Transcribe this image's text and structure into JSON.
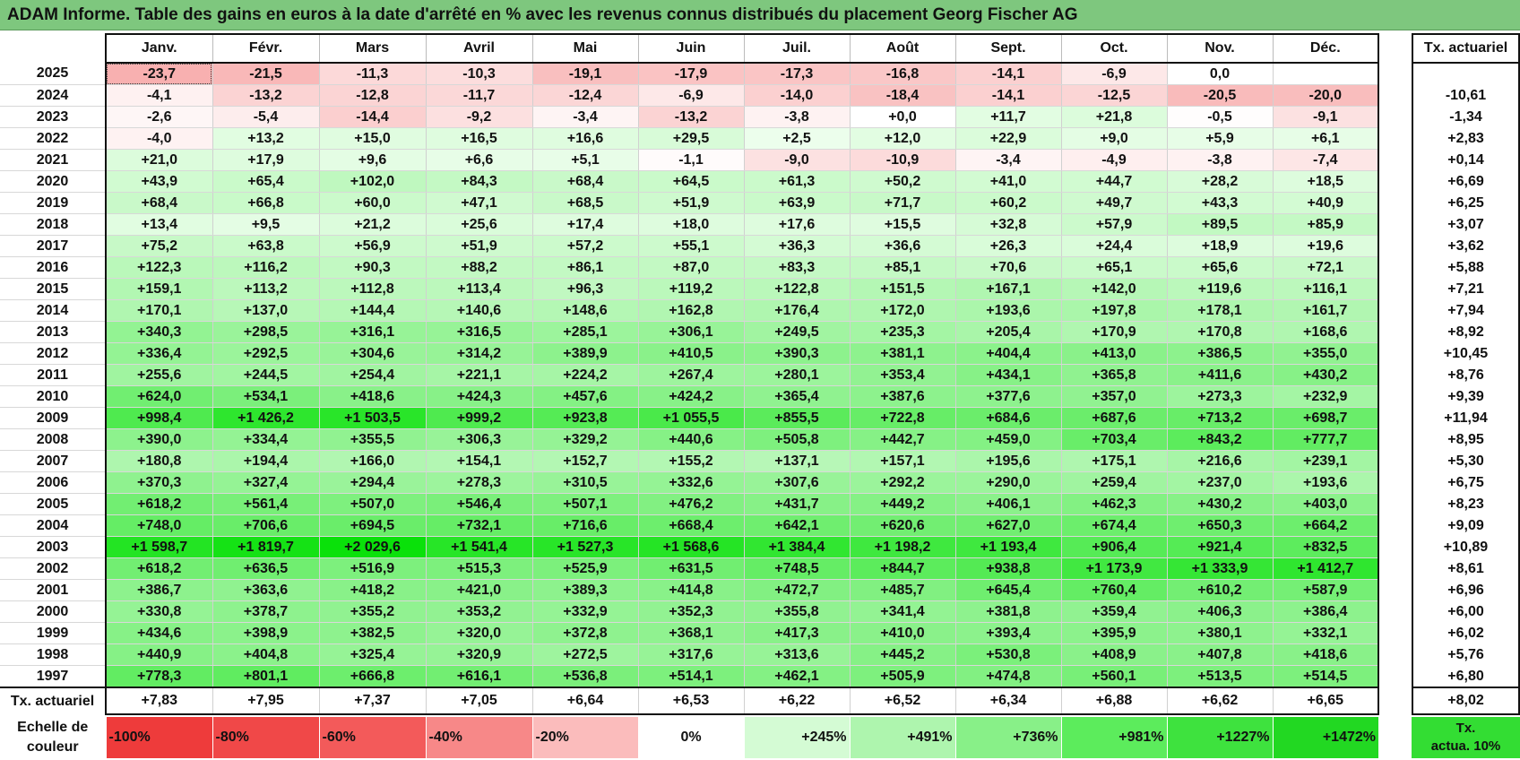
{
  "title": "ADAM Informe. Table des gains en euros à la date d'arrêté en % avec les revenus connus distribués du placement Georg Fischer AG",
  "months": [
    "Janv.",
    "Févr.",
    "Mars",
    "Avril",
    "Mai",
    "Juin",
    "Juil.",
    "Août",
    "Sept.",
    "Oct.",
    "Nov.",
    "Déc."
  ],
  "side_header": "Tx. actuariel",
  "rows": [
    {
      "year": "2025",
      "cells": [
        "-23,7",
        "-21,5",
        "-11,3",
        "-10,3",
        "-19,1",
        "-17,9",
        "-17,3",
        "-16,8",
        "-14,1",
        "-6,9",
        "0,0",
        ""
      ],
      "rate": ""
    },
    {
      "year": "2024",
      "cells": [
        "-4,1",
        "-13,2",
        "-12,8",
        "-11,7",
        "-12,4",
        "-6,9",
        "-14,0",
        "-18,4",
        "-14,1",
        "-12,5",
        "-20,5",
        "-20,0"
      ],
      "rate": "-10,61"
    },
    {
      "year": "2023",
      "cells": [
        "-2,6",
        "-5,4",
        "-14,4",
        "-9,2",
        "-3,4",
        "-13,2",
        "-3,8",
        "+0,0",
        "+11,7",
        "+21,8",
        "-0,5",
        "-9,1"
      ],
      "rate": "-1,34"
    },
    {
      "year": "2022",
      "cells": [
        "-4,0",
        "+13,2",
        "+15,0",
        "+16,5",
        "+16,6",
        "+29,5",
        "+2,5",
        "+12,0",
        "+22,9",
        "+9,0",
        "+5,9",
        "+6,1"
      ],
      "rate": "+2,83"
    },
    {
      "year": "2021",
      "cells": [
        "+21,0",
        "+17,9",
        "+9,6",
        "+6,6",
        "+5,1",
        "-1,1",
        "-9,0",
        "-10,9",
        "-3,4",
        "-4,9",
        "-3,8",
        "-7,4"
      ],
      "rate": "+0,14"
    },
    {
      "year": "2020",
      "cells": [
        "+43,9",
        "+65,4",
        "+102,0",
        "+84,3",
        "+68,4",
        "+64,5",
        "+61,3",
        "+50,2",
        "+41,0",
        "+44,7",
        "+28,2",
        "+18,5"
      ],
      "rate": "+6,69"
    },
    {
      "year": "2019",
      "cells": [
        "+68,4",
        "+66,8",
        "+60,0",
        "+47,1",
        "+68,5",
        "+51,9",
        "+63,9",
        "+71,7",
        "+60,2",
        "+49,7",
        "+43,3",
        "+40,9"
      ],
      "rate": "+6,25"
    },
    {
      "year": "2018",
      "cells": [
        "+13,4",
        "+9,5",
        "+21,2",
        "+25,6",
        "+17,4",
        "+18,0",
        "+17,6",
        "+15,5",
        "+32,8",
        "+57,9",
        "+89,5",
        "+85,9"
      ],
      "rate": "+3,07"
    },
    {
      "year": "2017",
      "cells": [
        "+75,2",
        "+63,8",
        "+56,9",
        "+51,9",
        "+57,2",
        "+55,1",
        "+36,3",
        "+36,6",
        "+26,3",
        "+24,4",
        "+18,9",
        "+19,6"
      ],
      "rate": "+3,62"
    },
    {
      "year": "2016",
      "cells": [
        "+122,3",
        "+116,2",
        "+90,3",
        "+88,2",
        "+86,1",
        "+87,0",
        "+83,3",
        "+85,1",
        "+70,6",
        "+65,1",
        "+65,6",
        "+72,1"
      ],
      "rate": "+5,88"
    },
    {
      "year": "2015",
      "cells": [
        "+159,1",
        "+113,2",
        "+112,8",
        "+113,4",
        "+96,3",
        "+119,2",
        "+122,8",
        "+151,5",
        "+167,1",
        "+142,0",
        "+119,6",
        "+116,1"
      ],
      "rate": "+7,21"
    },
    {
      "year": "2014",
      "cells": [
        "+170,1",
        "+137,0",
        "+144,4",
        "+140,6",
        "+148,6",
        "+162,8",
        "+176,4",
        "+172,0",
        "+193,6",
        "+197,8",
        "+178,1",
        "+161,7"
      ],
      "rate": "+7,94"
    },
    {
      "year": "2013",
      "cells": [
        "+340,3",
        "+298,5",
        "+316,1",
        "+316,5",
        "+285,1",
        "+306,1",
        "+249,5",
        "+235,3",
        "+205,4",
        "+170,9",
        "+170,8",
        "+168,6"
      ],
      "rate": "+8,92"
    },
    {
      "year": "2012",
      "cells": [
        "+336,4",
        "+292,5",
        "+304,6",
        "+314,2",
        "+389,9",
        "+410,5",
        "+390,3",
        "+381,1",
        "+404,4",
        "+413,0",
        "+386,5",
        "+355,0"
      ],
      "rate": "+10,45"
    },
    {
      "year": "2011",
      "cells": [
        "+255,6",
        "+244,5",
        "+254,4",
        "+221,1",
        "+224,2",
        "+267,4",
        "+280,1",
        "+353,4",
        "+434,1",
        "+365,8",
        "+411,6",
        "+430,2"
      ],
      "rate": "+8,76"
    },
    {
      "year": "2010",
      "cells": [
        "+624,0",
        "+534,1",
        "+418,6",
        "+424,3",
        "+457,6",
        "+424,2",
        "+365,4",
        "+387,6",
        "+377,6",
        "+357,0",
        "+273,3",
        "+232,9"
      ],
      "rate": "+9,39"
    },
    {
      "year": "2009",
      "cells": [
        "+998,4",
        "+1 426,2",
        "+1 503,5",
        "+999,2",
        "+923,8",
        "+1 055,5",
        "+855,5",
        "+722,8",
        "+684,6",
        "+687,6",
        "+713,2",
        "+698,7"
      ],
      "rate": "+11,94"
    },
    {
      "year": "2008",
      "cells": [
        "+390,0",
        "+334,4",
        "+355,5",
        "+306,3",
        "+329,2",
        "+440,6",
        "+505,8",
        "+442,7",
        "+459,0",
        "+703,4",
        "+843,2",
        "+777,7"
      ],
      "rate": "+8,95"
    },
    {
      "year": "2007",
      "cells": [
        "+180,8",
        "+194,4",
        "+166,0",
        "+154,1",
        "+152,7",
        "+155,2",
        "+137,1",
        "+157,1",
        "+195,6",
        "+175,1",
        "+216,6",
        "+239,1"
      ],
      "rate": "+5,30"
    },
    {
      "year": "2006",
      "cells": [
        "+370,3",
        "+327,4",
        "+294,4",
        "+278,3",
        "+310,5",
        "+332,6",
        "+307,6",
        "+292,2",
        "+290,0",
        "+259,4",
        "+237,0",
        "+193,6"
      ],
      "rate": "+6,75"
    },
    {
      "year": "2005",
      "cells": [
        "+618,2",
        "+561,4",
        "+507,0",
        "+546,4",
        "+507,1",
        "+476,2",
        "+431,7",
        "+449,2",
        "+406,1",
        "+462,3",
        "+430,2",
        "+403,0"
      ],
      "rate": "+8,23"
    },
    {
      "year": "2004",
      "cells": [
        "+748,0",
        "+706,6",
        "+694,5",
        "+732,1",
        "+716,6",
        "+668,4",
        "+642,1",
        "+620,6",
        "+627,0",
        "+674,4",
        "+650,3",
        "+664,2"
      ],
      "rate": "+9,09"
    },
    {
      "year": "2003",
      "cells": [
        "+1 598,7",
        "+1 819,7",
        "+2 029,6",
        "+1 541,4",
        "+1 527,3",
        "+1 568,6",
        "+1 384,4",
        "+1 198,2",
        "+1 193,4",
        "+906,4",
        "+921,4",
        "+832,5"
      ],
      "rate": "+10,89"
    },
    {
      "year": "2002",
      "cells": [
        "+618,2",
        "+636,5",
        "+516,9",
        "+515,3",
        "+525,9",
        "+631,5",
        "+748,5",
        "+844,7",
        "+938,8",
        "+1 173,9",
        "+1 333,9",
        "+1 412,7"
      ],
      "rate": "+8,61"
    },
    {
      "year": "2001",
      "cells": [
        "+386,7",
        "+363,6",
        "+418,2",
        "+421,0",
        "+389,3",
        "+414,8",
        "+472,7",
        "+485,7",
        "+645,4",
        "+760,4",
        "+610,2",
        "+587,9"
      ],
      "rate": "+6,96"
    },
    {
      "year": "2000",
      "cells": [
        "+330,8",
        "+378,7",
        "+355,2",
        "+353,2",
        "+332,9",
        "+352,3",
        "+355,8",
        "+341,4",
        "+381,8",
        "+359,4",
        "+406,3",
        "+386,4"
      ],
      "rate": "+6,00"
    },
    {
      "year": "1999",
      "cells": [
        "+434,6",
        "+398,9",
        "+382,5",
        "+320,0",
        "+372,8",
        "+368,1",
        "+417,3",
        "+410,0",
        "+393,4",
        "+395,9",
        "+380,1",
        "+332,1"
      ],
      "rate": "+6,02"
    },
    {
      "year": "1998",
      "cells": [
        "+440,9",
        "+404,8",
        "+325,4",
        "+320,9",
        "+272,5",
        "+317,6",
        "+313,6",
        "+445,2",
        "+530,8",
        "+408,9",
        "+407,8",
        "+418,6"
      ],
      "rate": "+5,76"
    },
    {
      "year": "1997",
      "cells": [
        "+778,3",
        "+801,1",
        "+666,8",
        "+616,1",
        "+536,8",
        "+514,1",
        "+462,1",
        "+505,9",
        "+474,8",
        "+560,1",
        "+513,5",
        "+514,5"
      ],
      "rate": "+6,80"
    }
  ],
  "footer": {
    "label": "Tx. actuariel",
    "cells": [
      "+7,83",
      "+7,95",
      "+7,37",
      "+7,05",
      "+6,64",
      "+6,53",
      "+6,22",
      "+6,52",
      "+6,34",
      "+6,88",
      "+6,62",
      "+6,65"
    ],
    "rate": "+8,02"
  },
  "scale": {
    "label_line1": "Echelle de",
    "label_line2": "couleur",
    "steps": [
      {
        "text": "-100%",
        "color": "#ee3b3b",
        "align": "left"
      },
      {
        "text": "-80%",
        "color": "#f04848",
        "align": "left"
      },
      {
        "text": "-60%",
        "color": "#f35a5a",
        "align": "left"
      },
      {
        "text": "-40%",
        "color": "#f78888",
        "align": "left"
      },
      {
        "text": "-20%",
        "color": "#fbbcbc",
        "align": "left"
      },
      {
        "text": "0%",
        "color": "#ffffff",
        "align": "center"
      },
      {
        "text": "+245%",
        "color": "#d4fbd4",
        "align": "right"
      },
      {
        "text": "+491%",
        "color": "#aef5ae",
        "align": "right"
      },
      {
        "text": "+736%",
        "color": "#88f088",
        "align": "right"
      },
      {
        "text": "+981%",
        "color": "#5cec5c",
        "align": "right"
      },
      {
        "text": "+1227%",
        "color": "#3ee23e",
        "align": "right"
      },
      {
        "text": "+1472%",
        "color": "#22d822",
        "align": "right"
      }
    ],
    "actua_line1": "Tx.",
    "actua_line2": "actua. 10%",
    "actua_color": "#33dd33"
  }
}
